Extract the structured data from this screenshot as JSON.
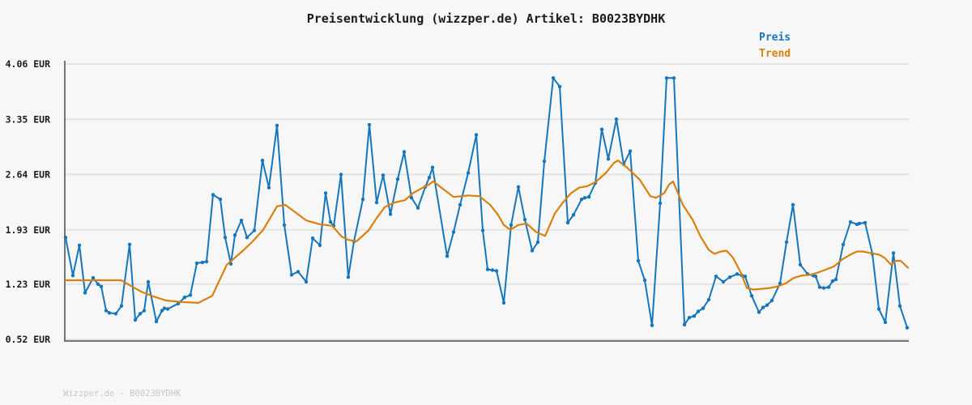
{
  "title": "Preisentwicklung (wizzper.de) Artikel: B0023BYDHK",
  "footer": "Wizzper.de - B0023BYDHK",
  "legend": {
    "items": [
      {
        "label": "Preis",
        "color": "#1476bd"
      },
      {
        "label": "Trend",
        "color": "#d9800e"
      }
    ]
  },
  "colors": {
    "background": "#f7f7f7",
    "grid": "#e3e3e3",
    "axis": "#757575",
    "price_line": "#1476bd",
    "trend_line": "#d9800e",
    "tick_text": "#1b1b1b",
    "footer_text": "#c8c8c8"
  },
  "chart_data": {
    "type": "line",
    "title": "Preisentwicklung (wizzper.de) Artikel: B0023BYDHK",
    "xlabel": "",
    "ylabel": "",
    "y_unit": "EUR",
    "ylim": [
      0.52,
      4.06
    ],
    "grid": "horizontal",
    "legend_position": "top-right",
    "x_axis_labels": "none shown",
    "yticks": [
      {
        "value": 4.06,
        "label": "4.06 EUR"
      },
      {
        "value": 3.35,
        "label": "3.35 EUR"
      },
      {
        "value": 2.64,
        "label": "2.64 EUR"
      },
      {
        "value": 1.93,
        "label": "1.93 EUR"
      },
      {
        "value": 1.23,
        "label": "1.23 EUR"
      },
      {
        "value": 0.52,
        "label": "0.52 EUR"
      }
    ],
    "series": [
      {
        "name": "Preis",
        "color": "#1476bd",
        "markers": true,
        "points": [
          [
            81,
            1.83
          ],
          [
            90,
            1.34
          ],
          [
            98,
            1.73
          ],
          [
            105,
            1.12
          ],
          [
            115,
            1.31
          ],
          [
            121,
            1.23
          ],
          [
            125,
            1.2
          ],
          [
            131,
            0.89
          ],
          [
            135,
            0.86
          ],
          [
            143,
            0.85
          ],
          [
            150,
            0.95
          ],
          [
            160,
            1.74
          ],
          [
            167,
            0.77
          ],
          [
            173,
            0.85
          ],
          [
            178,
            0.89
          ],
          [
            183,
            1.26
          ],
          [
            193,
            0.75
          ],
          [
            200,
            0.89
          ],
          [
            203,
            0.92
          ],
          [
            207,
            0.91
          ],
          [
            220,
            0.98
          ],
          [
            228,
            1.06
          ],
          [
            235,
            1.09
          ],
          [
            243,
            1.5
          ],
          [
            250,
            1.51
          ],
          [
            255,
            1.52
          ],
          [
            263,
            2.38
          ],
          [
            272,
            2.32
          ],
          [
            278,
            1.83
          ],
          [
            285,
            1.49
          ],
          [
            290,
            1.86
          ],
          [
            298,
            2.05
          ],
          [
            305,
            1.83
          ],
          [
            314,
            1.92
          ],
          [
            324,
            2.82
          ],
          [
            332,
            2.47
          ],
          [
            342,
            3.27
          ],
          [
            351,
            1.99
          ],
          [
            360,
            1.35
          ],
          [
            368,
            1.39
          ],
          [
            378,
            1.26
          ],
          [
            386,
            1.82
          ],
          [
            395,
            1.73
          ],
          [
            402,
            2.4
          ],
          [
            408,
            2.03
          ],
          [
            412,
            1.98
          ],
          [
            421,
            2.64
          ],
          [
            430,
            1.32
          ],
          [
            437,
            1.78
          ],
          [
            448,
            2.32
          ],
          [
            456,
            3.28
          ],
          [
            465,
            2.28
          ],
          [
            473,
            2.63
          ],
          [
            482,
            2.13
          ],
          [
            491,
            2.58
          ],
          [
            499,
            2.93
          ],
          [
            508,
            2.34
          ],
          [
            516,
            2.21
          ],
          [
            525,
            2.48
          ],
          [
            530,
            2.6
          ],
          [
            534,
            2.73
          ],
          [
            552,
            1.59
          ],
          [
            560,
            1.9
          ],
          [
            568,
            2.25
          ],
          [
            578,
            2.66
          ],
          [
            588,
            3.15
          ],
          [
            596,
            1.92
          ],
          [
            602,
            1.42
          ],
          [
            608,
            1.41
          ],
          [
            613,
            1.4
          ],
          [
            622,
            0.99
          ],
          [
            631,
            1.99
          ],
          [
            640,
            2.48
          ],
          [
            648,
            2.06
          ],
          [
            657,
            1.66
          ],
          [
            664,
            1.77
          ],
          [
            672,
            2.81
          ],
          [
            683,
            3.88
          ],
          [
            691,
            3.77
          ],
          [
            701,
            2.02
          ],
          [
            708,
            2.12
          ],
          [
            718,
            2.32
          ],
          [
            722,
            2.34
          ],
          [
            727,
            2.35
          ],
          [
            735,
            2.53
          ],
          [
            743,
            3.22
          ],
          [
            751,
            2.84
          ],
          [
            761,
            3.35
          ],
          [
            770,
            2.77
          ],
          [
            778,
            2.94
          ],
          [
            788,
            1.53
          ],
          [
            796,
            1.28
          ],
          [
            805,
            0.7
          ],
          [
            815,
            2.27
          ],
          [
            823,
            3.88
          ],
          [
            832,
            3.88
          ],
          [
            845,
            0.71
          ],
          [
            851,
            0.8
          ],
          [
            857,
            0.82
          ],
          [
            862,
            0.88
          ],
          [
            868,
            0.92
          ],
          [
            875,
            1.03
          ],
          [
            884,
            1.33
          ],
          [
            893,
            1.26
          ],
          [
            901,
            1.32
          ],
          [
            910,
            1.36
          ],
          [
            916,
            1.34
          ],
          [
            920,
            1.33
          ],
          [
            928,
            1.08
          ],
          [
            937,
            0.87
          ],
          [
            942,
            0.93
          ],
          [
            947,
            0.96
          ],
          [
            953,
            1.02
          ],
          [
            963,
            1.24
          ],
          [
            971,
            1.77
          ],
          [
            979,
            2.25
          ],
          [
            988,
            1.48
          ],
          [
            997,
            1.36
          ],
          [
            1004,
            1.34
          ],
          [
            1007,
            1.33
          ],
          [
            1012,
            1.19
          ],
          [
            1017,
            1.18
          ],
          [
            1023,
            1.19
          ],
          [
            1028,
            1.27
          ],
          [
            1032,
            1.29
          ],
          [
            1041,
            1.74
          ],
          [
            1050,
            2.03
          ],
          [
            1058,
            2.0
          ],
          [
            1061,
            2.01
          ],
          [
            1068,
            2.02
          ],
          [
            1077,
            1.62
          ],
          [
            1085,
            0.91
          ],
          [
            1093,
            0.74
          ],
          [
            1103,
            1.63
          ],
          [
            1111,
            0.95
          ],
          [
            1120,
            0.67
          ]
        ]
      },
      {
        "name": "Trend",
        "color": "#d9800e",
        "markers": false,
        "points": [
          [
            81,
            1.28
          ],
          [
            150,
            1.28
          ],
          [
            161,
            1.21
          ],
          [
            175,
            1.13
          ],
          [
            190,
            1.07
          ],
          [
            205,
            1.02
          ],
          [
            225,
            1.0
          ],
          [
            245,
            0.99
          ],
          [
            262,
            1.08
          ],
          [
            280,
            1.48
          ],
          [
            300,
            1.66
          ],
          [
            312,
            1.78
          ],
          [
            325,
            1.93
          ],
          [
            342,
            2.23
          ],
          [
            352,
            2.25
          ],
          [
            365,
            2.15
          ],
          [
            378,
            2.05
          ],
          [
            395,
            2.0
          ],
          [
            410,
            1.98
          ],
          [
            422,
            1.84
          ],
          [
            430,
            1.8
          ],
          [
            440,
            1.78
          ],
          [
            455,
            1.92
          ],
          [
            465,
            2.08
          ],
          [
            475,
            2.22
          ],
          [
            487,
            2.28
          ],
          [
            500,
            2.31
          ],
          [
            510,
            2.4
          ],
          [
            520,
            2.46
          ],
          [
            528,
            2.5
          ],
          [
            535,
            2.55
          ],
          [
            545,
            2.47
          ],
          [
            560,
            2.35
          ],
          [
            578,
            2.37
          ],
          [
            592,
            2.36
          ],
          [
            605,
            2.25
          ],
          [
            615,
            2.12
          ],
          [
            622,
            1.99
          ],
          [
            630,
            1.93
          ],
          [
            640,
            1.99
          ],
          [
            650,
            2.01
          ],
          [
            662,
            1.9
          ],
          [
            673,
            1.85
          ],
          [
            685,
            2.14
          ],
          [
            695,
            2.28
          ],
          [
            705,
            2.4
          ],
          [
            715,
            2.47
          ],
          [
            725,
            2.49
          ],
          [
            735,
            2.54
          ],
          [
            748,
            2.66
          ],
          [
            758,
            2.79
          ],
          [
            763,
            2.82
          ],
          [
            775,
            2.72
          ],
          [
            790,
            2.57
          ],
          [
            803,
            2.36
          ],
          [
            810,
            2.34
          ],
          [
            820,
            2.4
          ],
          [
            826,
            2.51
          ],
          [
            831,
            2.55
          ],
          [
            843,
            2.25
          ],
          [
            855,
            2.06
          ],
          [
            865,
            1.84
          ],
          [
            875,
            1.67
          ],
          [
            882,
            1.62
          ],
          [
            890,
            1.65
          ],
          [
            897,
            1.66
          ],
          [
            905,
            1.57
          ],
          [
            915,
            1.37
          ],
          [
            922,
            1.18
          ],
          [
            930,
            1.16
          ],
          [
            940,
            1.17
          ],
          [
            950,
            1.18
          ],
          [
            960,
            1.2
          ],
          [
            970,
            1.24
          ],
          [
            980,
            1.31
          ],
          [
            990,
            1.34
          ],
          [
            1000,
            1.35
          ],
          [
            1010,
            1.38
          ],
          [
            1020,
            1.42
          ],
          [
            1030,
            1.46
          ],
          [
            1040,
            1.55
          ],
          [
            1050,
            1.61
          ],
          [
            1058,
            1.65
          ],
          [
            1065,
            1.65
          ],
          [
            1075,
            1.63
          ],
          [
            1085,
            1.61
          ],
          [
            1092,
            1.57
          ],
          [
            1100,
            1.48
          ],
          [
            1106,
            1.53
          ],
          [
            1112,
            1.53
          ],
          [
            1121,
            1.44
          ]
        ]
      }
    ]
  }
}
